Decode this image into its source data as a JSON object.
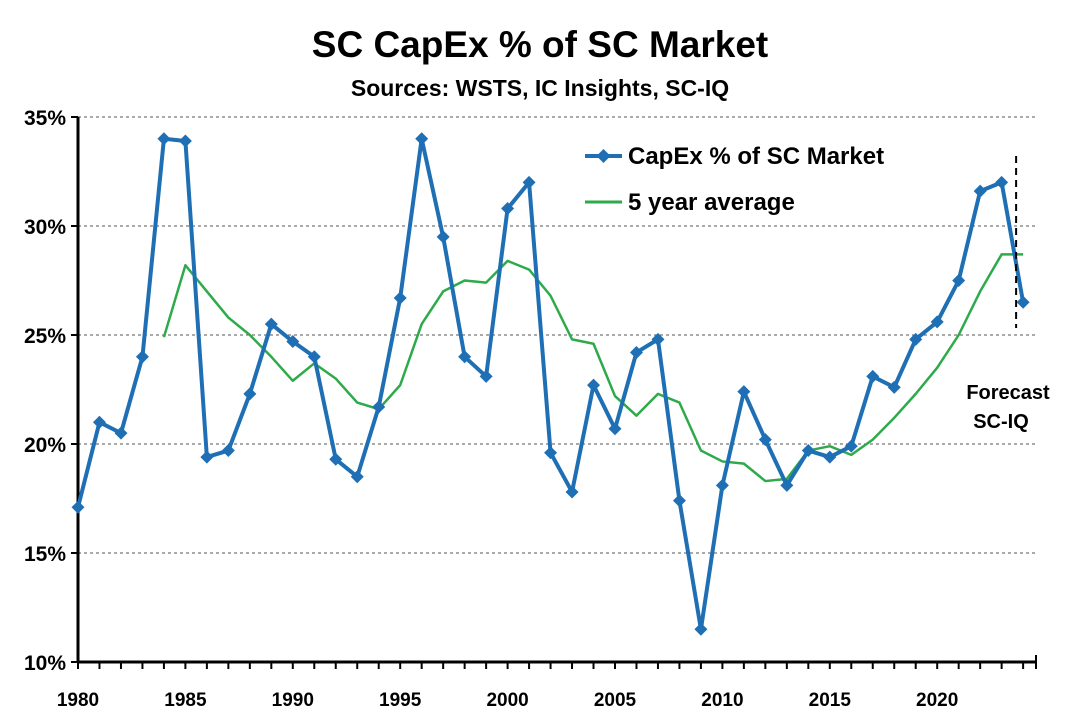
{
  "chart_data": {
    "type": "line",
    "title": "SC CapEx % of SC Market",
    "subtitle": "Sources: WSTS, IC Insights, SC-IQ",
    "xlabel": "",
    "ylabel": "",
    "xlim": [
      1980,
      2024
    ],
    "ylim": [
      10,
      35
    ],
    "x_ticks": [
      "1980",
      "1985",
      "1990",
      "1995",
      "2000",
      "2005",
      "2010",
      "2015",
      "2020"
    ],
    "y_ticks": [
      "10%",
      "15%",
      "20%",
      "25%",
      "30%",
      "35%"
    ],
    "grid": "horizontal-dashed",
    "legend_position": "top-right",
    "colors": {
      "capex": "#1f6fb5",
      "average": "#2eaa4a"
    },
    "series": [
      {
        "name": "CapEx % of SC Market",
        "style": "line-diamond-markers",
        "x": [
          1980,
          1981,
          1982,
          1983,
          1984,
          1985,
          1986,
          1987,
          1988,
          1989,
          1990,
          1991,
          1992,
          1993,
          1994,
          1995,
          1996,
          1997,
          1998,
          1999,
          2000,
          2001,
          2002,
          2003,
          2004,
          2005,
          2006,
          2007,
          2008,
          2009,
          2010,
          2011,
          2012,
          2013,
          2014,
          2015,
          2016,
          2017,
          2018,
          2019,
          2020,
          2021,
          2022,
          2023,
          2024
        ],
        "values": [
          17.1,
          21.0,
          20.5,
          24.0,
          34.0,
          33.9,
          19.4,
          19.7,
          22.3,
          25.5,
          24.7,
          24.0,
          19.3,
          18.5,
          21.7,
          26.7,
          34.0,
          29.5,
          24.0,
          23.1,
          30.8,
          32.0,
          19.6,
          17.8,
          22.7,
          20.7,
          24.2,
          24.8,
          17.4,
          11.5,
          18.1,
          22.4,
          20.2,
          18.1,
          19.7,
          19.4,
          19.9,
          23.1,
          22.6,
          24.8,
          25.6,
          27.5,
          31.6,
          32.0,
          26.5
        ]
      },
      {
        "name": "5 year average",
        "style": "line",
        "x": [
          1984,
          1985,
          1986,
          1987,
          1988,
          1989,
          1990,
          1991,
          1992,
          1993,
          1994,
          1995,
          1996,
          1997,
          1998,
          1999,
          2000,
          2001,
          2002,
          2003,
          2004,
          2005,
          2006,
          2007,
          2008,
          2009,
          2010,
          2011,
          2012,
          2013,
          2014,
          2015,
          2016,
          2017,
          2018,
          2019,
          2020,
          2021,
          2022,
          2023,
          2024
        ],
        "values": [
          24.9,
          28.2,
          27.0,
          25.8,
          25.0,
          24.0,
          22.9,
          23.7,
          23.0,
          21.9,
          21.6,
          22.7,
          25.5,
          27.0,
          27.5,
          27.4,
          28.4,
          28.0,
          26.8,
          24.8,
          24.6,
          22.2,
          21.3,
          22.3,
          21.9,
          19.7,
          19.2,
          19.1,
          18.3,
          18.4,
          19.7,
          19.9,
          19.5,
          20.2,
          21.2,
          22.3,
          23.5,
          25.0,
          27.0,
          28.7,
          28.7
        ]
      }
    ],
    "annotations": [
      {
        "text_line1": "Forecast",
        "text_line2": "SC-IQ",
        "x": 2024
      }
    ]
  }
}
